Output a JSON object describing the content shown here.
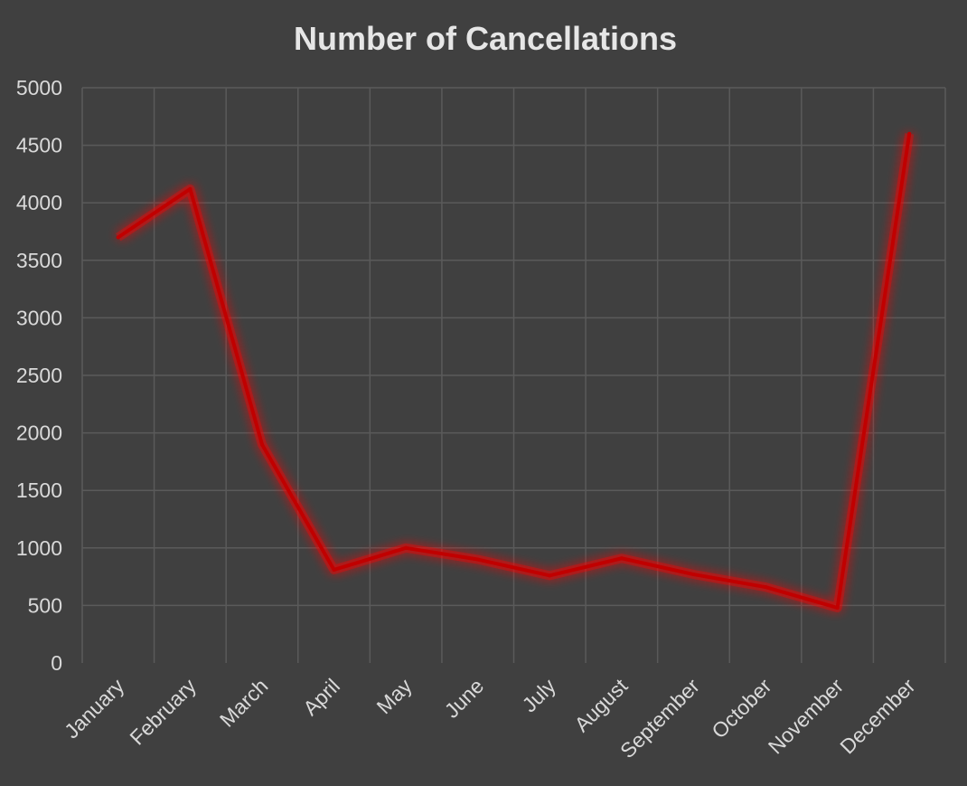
{
  "chart_data": {
    "type": "line",
    "title": "Number of Cancellations",
    "xlabel": "",
    "ylabel": "",
    "categories": [
      "January",
      "February",
      "March",
      "April",
      "May",
      "June",
      "July",
      "August",
      "September",
      "October",
      "November",
      "December"
    ],
    "series": [
      {
        "values": [
          3700,
          4120,
          1900,
          810,
          1000,
          900,
          760,
          910,
          770,
          660,
          480,
          4600
        ]
      }
    ],
    "ylim": [
      0,
      5000
    ],
    "yticks": [
      0,
      500,
      1000,
      1500,
      2000,
      2500,
      3000,
      3500,
      4000,
      4500,
      5000
    ],
    "grid": true,
    "legend": "none",
    "colors": {
      "background": "#404040",
      "line": "#c00000",
      "glow": "#ff0000",
      "grid": "#5a5a5a",
      "text": "#d9d9d9"
    }
  }
}
